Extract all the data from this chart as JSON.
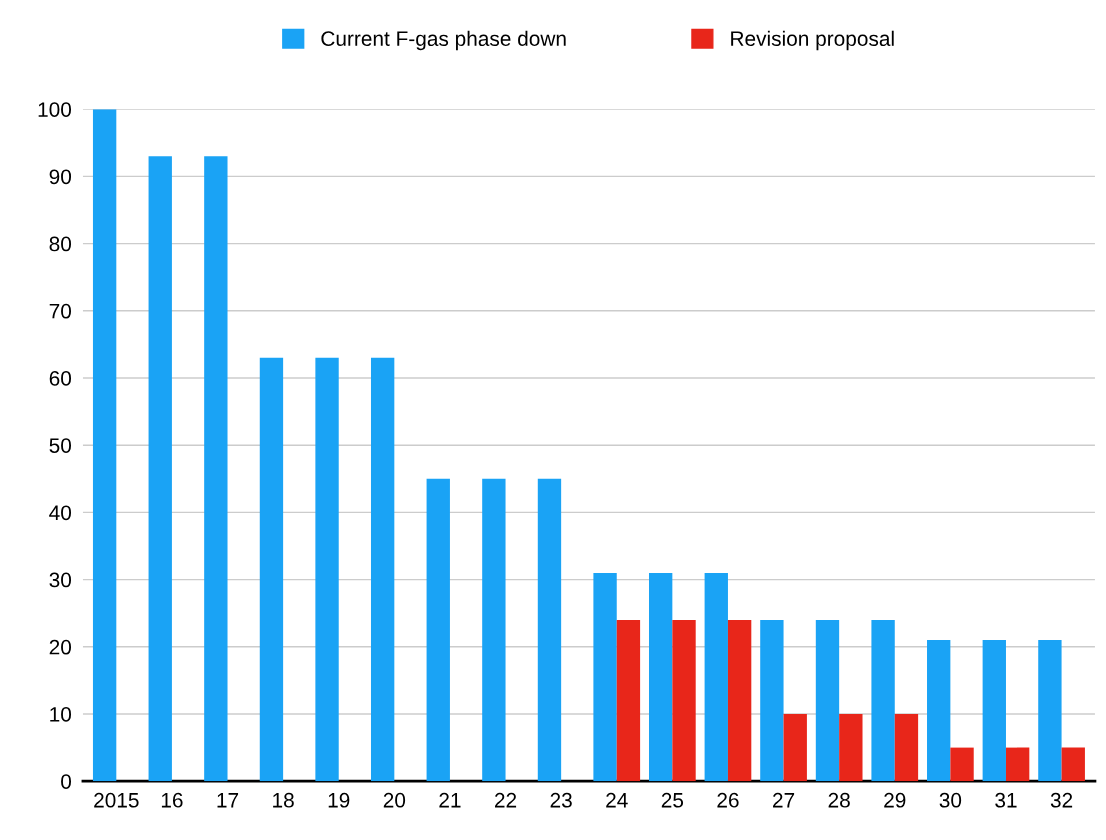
{
  "chart_data": {
    "type": "bar",
    "categories": [
      "2015",
      "16",
      "17",
      "18",
      "19",
      "20",
      "21",
      "22",
      "23",
      "24",
      "25",
      "26",
      "27",
      "28",
      "29",
      "30",
      "31",
      "32"
    ],
    "series": [
      {
        "name": "Current F-gas phase down",
        "color": "#1aa3f5",
        "values": [
          100,
          93,
          93,
          63,
          63,
          63,
          45,
          45,
          45,
          31,
          31,
          31,
          24,
          24,
          24,
          21,
          21,
          21
        ]
      },
      {
        "name": "Revision proposal",
        "color": "#e8261a",
        "values": [
          null,
          null,
          null,
          null,
          null,
          null,
          null,
          null,
          null,
          24,
          24,
          24,
          10,
          10,
          10,
          5,
          5,
          5
        ]
      }
    ],
    "ylim": [
      0,
      100
    ],
    "yticks": [
      0,
      10,
      20,
      30,
      40,
      50,
      60,
      70,
      80,
      90,
      100
    ],
    "grid": "y",
    "legend": "top"
  }
}
